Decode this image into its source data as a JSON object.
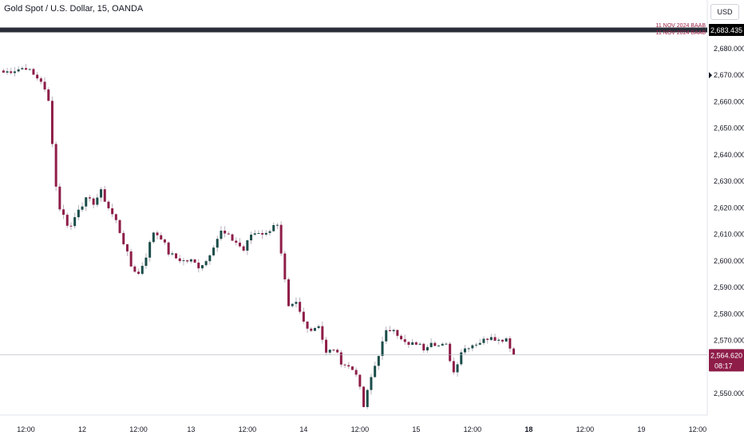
{
  "header": {
    "title": "Gold Spot / U.S. Dollar, 15, OANDA",
    "currency": "USD"
  },
  "chart_data": {
    "type": "candlestick",
    "title": "Gold Spot / U.S. Dollar, 15, OANDA",
    "y_tick_labels": [
      "2,680.000",
      "2,670.000",
      "2,660.000",
      "2,650.000",
      "2,640.000",
      "2,630.000",
      "2,620.000",
      "2,610.000",
      "2,600.000",
      "2,590.000",
      "2,580.000",
      "2,570.000",
      "2,550.000"
    ],
    "y_tick_values": [
      2680,
      2670,
      2660,
      2650,
      2640,
      2630,
      2620,
      2610,
      2600,
      2590,
      2580,
      2570,
      2550
    ],
    "ylim": [
      2542,
      2688
    ],
    "x_tick_labels": [
      "12:00",
      "12",
      "12:00",
      "13",
      "12:00",
      "14",
      "12:00",
      "15",
      "12:00",
      "18",
      "12:00",
      "19",
      "12:00"
    ],
    "x_tick_bold": [
      false,
      false,
      false,
      false,
      false,
      false,
      false,
      false,
      false,
      true,
      false,
      false,
      false
    ],
    "x_tick_index": [
      6,
      21,
      36,
      50,
      65,
      80,
      95,
      110,
      125,
      140,
      155,
      170,
      185
    ],
    "bar_count": 188,
    "current_price": 2564.62,
    "current_price_label": "2,564.620",
    "countdown": "08:17",
    "horizontal_lines": [
      {
        "price": 2683.435,
        "label": "2,683.435",
        "text": "11 NOV 2024 BAAB"
      },
      {
        "price": 2682.5,
        "text": "11 NOV 2024 BAAB"
      }
    ],
    "close_path": [
      [
        0,
        2671
      ],
      [
        3,
        2672
      ],
      [
        6,
        2673
      ],
      [
        8,
        2670
      ],
      [
        10,
        2668
      ],
      [
        12,
        2660
      ],
      [
        13,
        2645
      ],
      [
        14,
        2628
      ],
      [
        15,
        2620
      ],
      [
        17,
        2614
      ],
      [
        18,
        2613
      ],
      [
        20,
        2620
      ],
      [
        22,
        2623
      ],
      [
        24,
        2622
      ],
      [
        26,
        2626
      ],
      [
        28,
        2620
      ],
      [
        30,
        2615
      ],
      [
        32,
        2607
      ],
      [
        34,
        2598
      ],
      [
        36,
        2595
      ],
      [
        38,
        2602
      ],
      [
        40,
        2611
      ],
      [
        42,
        2609
      ],
      [
        44,
        2603
      ],
      [
        46,
        2601
      ],
      [
        48,
        2600
      ],
      [
        50,
        2600
      ],
      [
        52,
        2598
      ],
      [
        54,
        2600
      ],
      [
        56,
        2606
      ],
      [
        58,
        2611
      ],
      [
        60,
        2609
      ],
      [
        62,
        2607
      ],
      [
        64,
        2604
      ],
      [
        66,
        2610
      ],
      [
        68,
        2611
      ],
      [
        70,
        2610
      ],
      [
        72,
        2614
      ],
      [
        73,
        2613
      ],
      [
        74,
        2602
      ],
      [
        75,
        2592
      ],
      [
        76,
        2582
      ],
      [
        78,
        2584
      ],
      [
        80,
        2577
      ],
      [
        82,
        2574
      ],
      [
        84,
        2576
      ],
      [
        86,
        2565
      ],
      [
        88,
        2567
      ],
      [
        90,
        2562
      ],
      [
        92,
        2560
      ],
      [
        94,
        2558
      ],
      [
        96,
        2545
      ],
      [
        98,
        2556
      ],
      [
        100,
        2565
      ],
      [
        102,
        2573
      ],
      [
        104,
        2575
      ],
      [
        106,
        2570
      ],
      [
        108,
        2568
      ],
      [
        110,
        2569
      ],
      [
        112,
        2567
      ],
      [
        114,
        2570
      ],
      [
        116,
        2568
      ],
      [
        118,
        2568
      ],
      [
        120,
        2558
      ],
      [
        122,
        2566
      ],
      [
        124,
        2568
      ],
      [
        126,
        2569
      ],
      [
        128,
        2570
      ],
      [
        130,
        2572
      ],
      [
        132,
        2570
      ],
      [
        134,
        2571
      ],
      [
        136,
        2564.62
      ]
    ]
  }
}
